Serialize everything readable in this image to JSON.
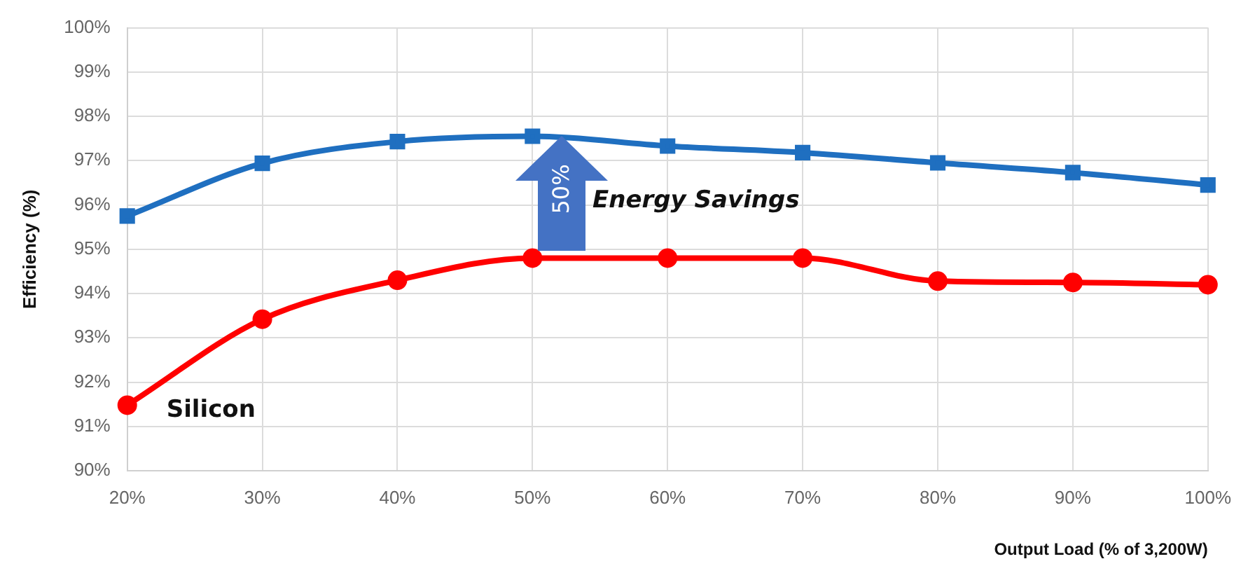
{
  "chart_data": {
    "type": "line",
    "ylabel": "Efficiency (%)",
    "xlabel": "Output Load (% of 3,200W)",
    "categories": [
      "20%",
      "30%",
      "40%",
      "50%",
      "60%",
      "70%",
      "80%",
      "90%",
      "100%"
    ],
    "series": [
      {
        "color": "#1f6fc0",
        "marker": "square",
        "values": [
          95.75,
          96.94,
          97.43,
          97.55,
          97.33,
          97.18,
          96.95,
          96.73,
          96.45
        ]
      },
      {
        "name": "Silicon",
        "color": "#ff0000",
        "marker": "circle",
        "values": [
          91.48,
          93.42,
          94.3,
          94.8,
          94.8,
          94.8,
          94.28,
          94.25,
          94.2
        ]
      }
    ],
    "ylim": [
      90,
      100
    ],
    "yticks": [
      {
        "value": 90,
        "label": "90%"
      },
      {
        "value": 91,
        "label": "91%"
      },
      {
        "value": 92,
        "label": "92%"
      },
      {
        "value": 93,
        "label": "93%"
      },
      {
        "value": 94,
        "label": "94%"
      },
      {
        "value": 95,
        "label": "95%"
      },
      {
        "value": 96,
        "label": "96%"
      },
      {
        "value": 97,
        "label": "97%"
      },
      {
        "value": 98,
        "label": "98%"
      },
      {
        "value": 99,
        "label": "99%"
      },
      {
        "value": 100,
        "label": "100%"
      }
    ],
    "grid": true,
    "legend": false,
    "annotations": [
      "50%",
      "Energy Savings"
    ]
  }
}
